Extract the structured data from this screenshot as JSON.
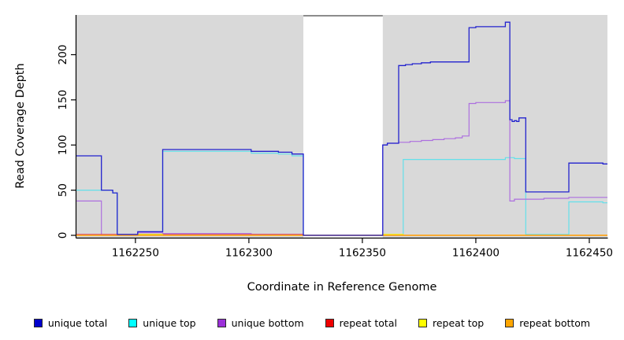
{
  "chart_data": {
    "type": "line",
    "style": "step-after",
    "title": "",
    "xlabel": "Coordinate in Reference Genome",
    "ylabel": "Read Coverage Depth",
    "axes": {
      "xlim": [
        1162224,
        1162458
      ],
      "ylim": [
        0,
        244
      ],
      "x_ticks": [
        1162250,
        1162300,
        1162350,
        1162400,
        1162450
      ],
      "y_ticks": [
        0,
        50,
        100,
        150,
        200
      ],
      "panel_bg": "#D9D9D9",
      "axis_color": "#000000",
      "grid": false
    },
    "mask_region": {
      "x1": 1162324,
      "x2": 1162359,
      "fill": "#FFFFFF",
      "top_border": "#8C8C8C"
    },
    "draw_order": [
      "unique_top",
      "unique_bottom",
      "repeat_total",
      "repeat_top",
      "repeat_bottom",
      "unique_total"
    ],
    "series": [
      {
        "id": "unique_total",
        "name": "unique total",
        "color": "#2222CE",
        "width": 1.3,
        "points": [
          [
            1162224,
            88
          ],
          [
            1162235,
            50
          ],
          [
            1162240,
            47
          ],
          [
            1162242,
            1
          ],
          [
            1162251,
            4
          ],
          [
            1162262,
            95
          ],
          [
            1162301,
            93
          ],
          [
            1162313,
            92
          ],
          [
            1162319,
            90
          ],
          [
            1162324,
            0
          ],
          [
            1162359,
            100
          ],
          [
            1162361,
            102
          ],
          [
            1162366,
            188
          ],
          [
            1162369,
            189
          ],
          [
            1162372,
            190
          ],
          [
            1162376,
            191
          ],
          [
            1162380,
            192
          ],
          [
            1162397,
            230
          ],
          [
            1162400,
            231
          ],
          [
            1162413,
            236
          ],
          [
            1162415,
            128
          ],
          [
            1162416,
            126
          ],
          [
            1162417,
            127
          ],
          [
            1162418,
            126
          ],
          [
            1162419,
            130
          ],
          [
            1162422,
            48
          ],
          [
            1162441,
            80
          ],
          [
            1162456,
            79
          ]
        ]
      },
      {
        "id": "unique_top",
        "name": "unique top",
        "color": "#63E0EA",
        "width": 1.2,
        "points": [
          [
            1162224,
            50
          ],
          [
            1162240,
            47
          ],
          [
            1162242,
            1
          ],
          [
            1162262,
            93
          ],
          [
            1162301,
            91
          ],
          [
            1162313,
            90
          ],
          [
            1162319,
            88
          ],
          [
            1162324,
            0
          ],
          [
            1162368,
            84
          ],
          [
            1162413,
            86
          ],
          [
            1162417,
            85
          ],
          [
            1162422,
            1
          ],
          [
            1162441,
            37
          ],
          [
            1162456,
            36
          ]
        ]
      },
      {
        "id": "unique_bottom",
        "name": "unique bottom",
        "color": "#AD6FDF",
        "width": 1.2,
        "points": [
          [
            1162224,
            38
          ],
          [
            1162235,
            0
          ],
          [
            1162251,
            3
          ],
          [
            1162262,
            2
          ],
          [
            1162301,
            1
          ],
          [
            1162324,
            0
          ],
          [
            1162359,
            100
          ],
          [
            1162361,
            102
          ],
          [
            1162366,
            103
          ],
          [
            1162371,
            104
          ],
          [
            1162376,
            105
          ],
          [
            1162381,
            106
          ],
          [
            1162386,
            107
          ],
          [
            1162391,
            108
          ],
          [
            1162394,
            110
          ],
          [
            1162397,
            146
          ],
          [
            1162400,
            147
          ],
          [
            1162413,
            149
          ],
          [
            1162415,
            38
          ],
          [
            1162417,
            40
          ],
          [
            1162430,
            41
          ],
          [
            1162441,
            42
          ]
        ]
      },
      {
        "id": "repeat_total",
        "name": "repeat total",
        "color": "#D5416B",
        "width": 1.2,
        "points": [
          [
            1162224,
            1
          ],
          [
            1162324,
            0
          ]
        ]
      },
      {
        "id": "repeat_top",
        "name": "repeat top",
        "color": "#F2F200",
        "width": 1.2,
        "points": [
          [
            1162224,
            0
          ],
          [
            1162251,
            1
          ],
          [
            1162262,
            0
          ],
          [
            1162359,
            1
          ],
          [
            1162368,
            0
          ]
        ]
      },
      {
        "id": "repeat_bottom",
        "name": "repeat bottom",
        "color": "#FFA318",
        "width": 1.6,
        "points": [
          [
            1162224,
            0
          ]
        ]
      }
    ],
    "legend": {
      "position": "bottom",
      "entries": [
        {
          "label": "unique total",
          "color": "#0000CD"
        },
        {
          "label": "unique top",
          "color": "#00FFFF"
        },
        {
          "label": "unique bottom",
          "color": "#9B30D9"
        },
        {
          "label": "repeat total",
          "color": "#EE0000"
        },
        {
          "label": "repeat top",
          "color": "#FFFF00"
        },
        {
          "label": "repeat bottom",
          "color": "#FFA500"
        }
      ]
    }
  }
}
